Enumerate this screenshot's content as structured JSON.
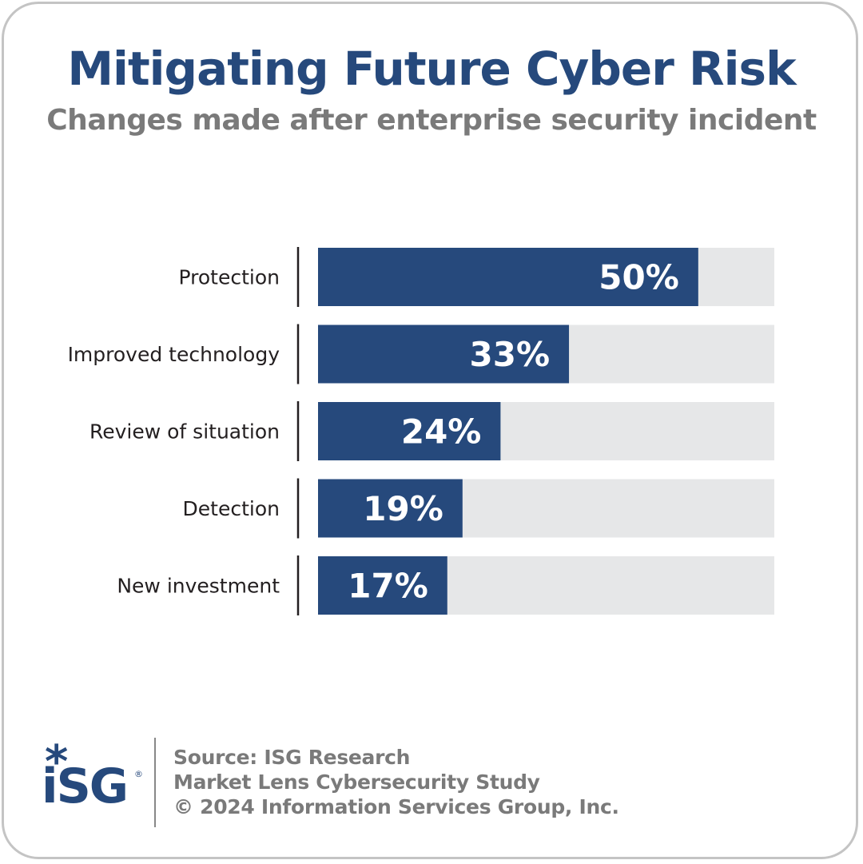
{
  "title": "Mitigating Future Cyber Risk",
  "subtitle": "Changes made after enterprise security incident",
  "colors": {
    "bar": "#26497c",
    "track": "#e6e7e8",
    "label_text": "#231f20",
    "value_text": "#ffffff",
    "title": "#26497c",
    "subtitle": "#7a7a7a",
    "logo": "#26497c"
  },
  "chart_data": {
    "type": "bar",
    "orientation": "horizontal",
    "categories": [
      "Protection",
      "Improved technology",
      "Review of situation",
      "Detection",
      "New investment"
    ],
    "values": [
      50,
      33,
      24,
      19,
      17
    ],
    "value_labels": [
      "50%",
      "33%",
      "24%",
      "19%",
      "17%"
    ],
    "xlim": [
      0,
      60
    ],
    "grid": false,
    "legend": "none"
  },
  "footer": {
    "logo_text": "iSG",
    "logo_star": "*",
    "logo_registered": "®",
    "lines": [
      "Source: ISG Research",
      "Market Lens Cybersecurity Study",
      "© 2024 Information Services Group, Inc."
    ]
  }
}
